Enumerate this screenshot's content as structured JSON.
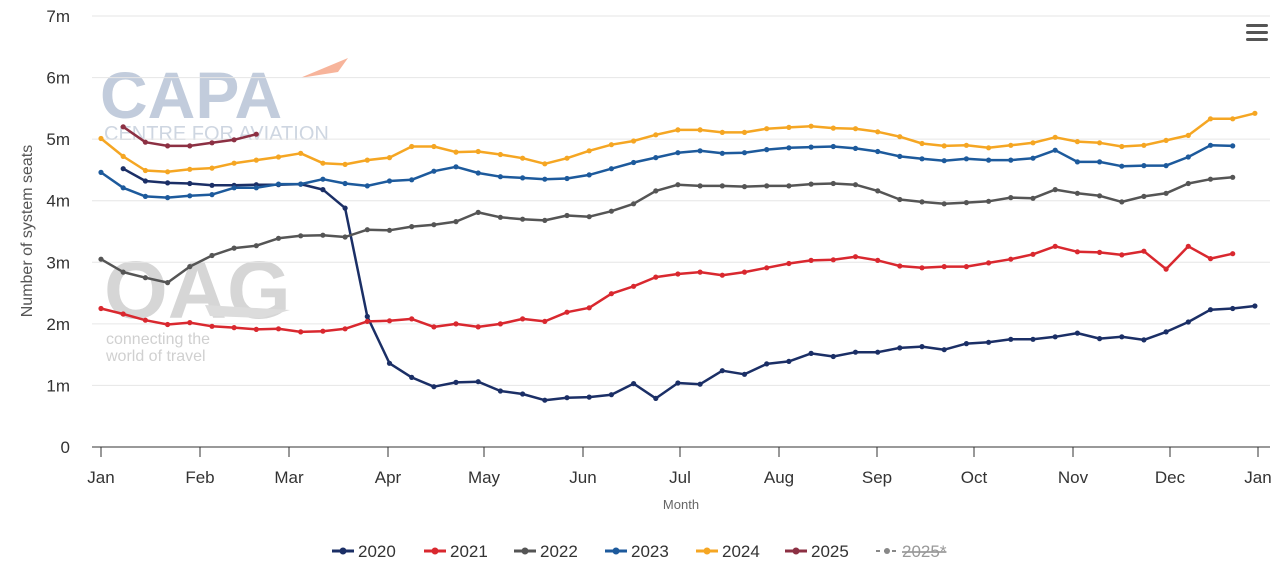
{
  "watermarks": {
    "capa_logo": "CAPA",
    "capa_tagline": "CENTRE FOR AVIATION",
    "oag_logo": "OAG",
    "oag_tagline_1": "connecting the",
    "oag_tagline_2": "world of travel"
  },
  "menu_icon": "hamburger-menu-icon",
  "chart_data": {
    "type": "line",
    "xlabel": "Month",
    "ylabel": "Number of system seats",
    "ylim": [
      0,
      7000000
    ],
    "y_ticks": [
      {
        "v": 0,
        "label": "0"
      },
      {
        "v": 1000000,
        "label": "1m"
      },
      {
        "v": 2000000,
        "label": "2m"
      },
      {
        "v": 3000000,
        "label": "3m"
      },
      {
        "v": 4000000,
        "label": "4m"
      },
      {
        "v": 5000000,
        "label": "5m"
      },
      {
        "v": 6000000,
        "label": "6m"
      },
      {
        "v": 7000000,
        "label": "7m"
      }
    ],
    "x_ticks": [
      "Jan",
      "Feb",
      "Mar",
      "Apr",
      "May",
      "Jun",
      "Jul",
      "Aug",
      "Sep",
      "Oct",
      "Nov",
      "Dec",
      "Jan"
    ],
    "grid": "horizontal",
    "legend_position": "bottom",
    "series": [
      {
        "name": "2020",
        "color": "#1b2f66",
        "start_week": 1,
        "values": [
          4.52,
          4.32,
          4.29,
          4.28,
          4.25,
          4.25,
          4.26,
          4.26,
          4.27,
          4.18,
          3.88,
          2.12,
          1.36,
          1.13,
          0.98,
          1.05,
          1.06,
          0.91,
          0.86,
          0.76,
          0.8,
          0.81,
          0.85,
          1.03,
          0.79,
          1.04,
          1.02,
          1.24,
          1.18,
          1.35,
          1.39,
          1.52,
          1.47,
          1.54,
          1.54,
          1.61,
          1.63,
          1.58,
          1.68,
          1.7,
          1.75,
          1.75,
          1.79,
          1.85,
          1.76,
          1.79,
          1.74,
          1.87,
          2.03,
          2.23,
          2.25,
          2.29
        ]
      },
      {
        "name": "2021",
        "color": "#d9282f",
        "start_week": 0,
        "values": [
          2.25,
          2.16,
          2.06,
          1.99,
          2.02,
          1.96,
          1.94,
          1.91,
          1.92,
          1.87,
          1.88,
          1.92,
          2.04,
          2.05,
          2.08,
          1.95,
          2.0,
          1.95,
          2.0,
          2.08,
          2.04,
          2.19,
          2.26,
          2.49,
          2.61,
          2.76,
          2.81,
          2.84,
          2.79,
          2.84,
          2.91,
          2.98,
          3.03,
          3.04,
          3.09,
          3.03,
          2.94,
          2.91,
          2.93,
          2.93,
          2.99,
          3.05,
          3.13,
          3.26,
          3.17,
          3.16,
          3.12,
          3.18,
          2.89,
          3.26,
          3.06,
          3.14
        ]
      },
      {
        "name": "2022",
        "color": "#555555",
        "start_week": 0,
        "values": [
          3.05,
          2.84,
          2.75,
          2.67,
          2.93,
          3.11,
          3.23,
          3.27,
          3.39,
          3.43,
          3.44,
          3.41,
          3.53,
          3.52,
          3.58,
          3.61,
          3.66,
          3.81,
          3.73,
          3.7,
          3.68,
          3.76,
          3.74,
          3.83,
          3.95,
          4.16,
          4.26,
          4.24,
          4.24,
          4.23,
          4.24,
          4.24,
          4.27,
          4.28,
          4.26,
          4.16,
          4.02,
          3.98,
          3.95,
          3.97,
          3.99,
          4.05,
          4.04,
          4.18,
          4.12,
          4.08,
          3.98,
          4.07,
          4.12,
          4.28,
          4.35,
          4.38
        ]
      },
      {
        "name": "2023",
        "color": "#1d5a9c",
        "start_week": 0,
        "values": [
          4.46,
          4.21,
          4.07,
          4.05,
          4.08,
          4.1,
          4.21,
          4.21,
          4.27,
          4.27,
          4.35,
          4.28,
          4.24,
          4.32,
          4.34,
          4.48,
          4.55,
          4.45,
          4.39,
          4.37,
          4.35,
          4.36,
          4.42,
          4.52,
          4.62,
          4.7,
          4.78,
          4.81,
          4.77,
          4.78,
          4.83,
          4.86,
          4.87,
          4.88,
          4.85,
          4.8,
          4.72,
          4.68,
          4.65,
          4.68,
          4.66,
          4.66,
          4.69,
          4.82,
          4.63,
          4.63,
          4.56,
          4.57,
          4.57,
          4.71,
          4.9,
          4.89
        ]
      },
      {
        "name": "2024",
        "color": "#f5a623",
        "start_week": 0,
        "values": [
          5.01,
          4.72,
          4.49,
          4.47,
          4.51,
          4.53,
          4.61,
          4.66,
          4.71,
          4.77,
          4.61,
          4.59,
          4.66,
          4.7,
          4.88,
          4.88,
          4.79,
          4.8,
          4.75,
          4.69,
          4.6,
          4.69,
          4.81,
          4.91,
          4.97,
          5.07,
          5.15,
          5.15,
          5.11,
          5.11,
          5.17,
          5.19,
          5.21,
          5.18,
          5.17,
          5.12,
          5.04,
          4.93,
          4.89,
          4.9,
          4.86,
          4.9,
          4.94,
          5.03,
          4.96,
          4.94,
          4.88,
          4.9,
          4.98,
          5.06,
          5.33,
          5.33,
          5.42
        ]
      },
      {
        "name": "2025",
        "color": "#8c3043",
        "start_week": 1,
        "values": [
          5.2,
          4.95,
          4.89,
          4.89,
          4.94,
          4.99,
          5.08
        ]
      },
      {
        "name": "2025*",
        "color": "#777777",
        "start_week": 0,
        "hidden": true,
        "values": []
      }
    ]
  }
}
